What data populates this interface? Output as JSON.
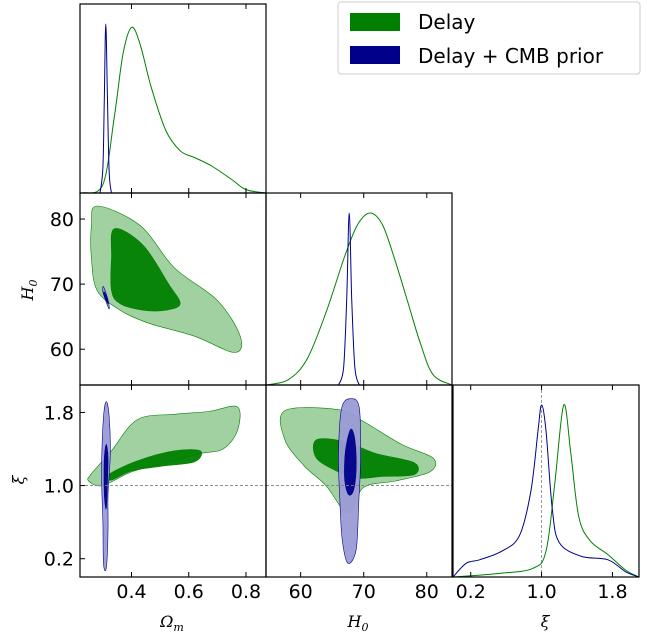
{
  "chart_data": {
    "type": "corner",
    "colors": {
      "delay": "#008000",
      "delay_cmb": "#00008b",
      "delay_fill_light": "#9cce9c",
      "cmb_fill_light": "#9b9bd6",
      "reference_line": "#7f7f7f"
    },
    "legend": {
      "position": "top-right",
      "entries": [
        {
          "label": "Delay",
          "color": "#008000"
        },
        {
          "label": "Delay + CMB prior",
          "color": "#00008b"
        }
      ]
    },
    "parameters": [
      {
        "symbol": "Ω",
        "subscript": "m",
        "range": [
          0.22,
          0.87
        ],
        "ticks": [
          {
            "value": 0.4,
            "label": "0.4"
          },
          {
            "value": 0.6,
            "label": "0.6"
          },
          {
            "value": 0.8,
            "label": "0.8"
          }
        ]
      },
      {
        "symbol": "H",
        "subscript": "0",
        "range": [
          54.5,
          84
        ],
        "ticks": [
          {
            "value": 60,
            "label": "60"
          },
          {
            "value": 70,
            "label": "70"
          },
          {
            "value": 80,
            "label": "80"
          }
        ]
      },
      {
        "symbol": "ξ",
        "subscript": "",
        "range": [
          0.0,
          2.1
        ],
        "ticks": [
          {
            "value": 0.2,
            "label": "0.2"
          },
          {
            "value": 1.0,
            "label": "1.0"
          },
          {
            "value": 1.8,
            "label": "1.8"
          }
        ]
      }
    ],
    "reference": {
      "parameter": "ξ",
      "value": 1.0
    },
    "marginals": {
      "Om": {
        "delay": [
          [
            0.23,
            0.0
          ],
          [
            0.3,
            0.05
          ],
          [
            0.34,
            0.45
          ],
          [
            0.37,
            0.82
          ],
          [
            0.4,
            0.98
          ],
          [
            0.43,
            0.88
          ],
          [
            0.47,
            0.62
          ],
          [
            0.52,
            0.37
          ],
          [
            0.57,
            0.25
          ],
          [
            0.62,
            0.21
          ],
          [
            0.68,
            0.16
          ],
          [
            0.75,
            0.08
          ],
          [
            0.8,
            0.02
          ],
          [
            0.87,
            0.0
          ]
        ],
        "delay_cmb": [
          [
            0.29,
            0.0
          ],
          [
            0.3,
            0.15
          ],
          [
            0.305,
            0.55
          ],
          [
            0.31,
            1.0
          ],
          [
            0.316,
            0.55
          ],
          [
            0.322,
            0.12
          ],
          [
            0.33,
            0.0
          ]
        ]
      },
      "H0": {
        "delay": [
          [
            54.5,
            0.0
          ],
          [
            58,
            0.03
          ],
          [
            61,
            0.15
          ],
          [
            64,
            0.42
          ],
          [
            67,
            0.75
          ],
          [
            69,
            0.93
          ],
          [
            71,
            1.0
          ],
          [
            73,
            0.93
          ],
          [
            75,
            0.72
          ],
          [
            77,
            0.48
          ],
          [
            79,
            0.24
          ],
          [
            81,
            0.06
          ],
          [
            84,
            0.0
          ]
        ],
        "delay_cmb": [
          [
            66.0,
            0.0
          ],
          [
            66.8,
            0.1
          ],
          [
            67.3,
            0.5
          ],
          [
            67.7,
            1.0
          ],
          [
            68.1,
            0.5
          ],
          [
            68.6,
            0.1
          ],
          [
            69.3,
            0.0
          ]
        ]
      },
      "xi": {
        "delay": [
          [
            0.0,
            0.0
          ],
          [
            0.5,
            0.02
          ],
          [
            0.9,
            0.05
          ],
          [
            1.05,
            0.15
          ],
          [
            1.15,
            0.55
          ],
          [
            1.25,
            1.0
          ],
          [
            1.33,
            0.72
          ],
          [
            1.42,
            0.35
          ],
          [
            1.55,
            0.21
          ],
          [
            1.75,
            0.13
          ],
          [
            1.95,
            0.04
          ],
          [
            2.1,
            0.0
          ]
        ],
        "delay_cmb": [
          [
            0.0,
            0.0
          ],
          [
            0.15,
            0.08
          ],
          [
            0.3,
            0.1
          ],
          [
            0.55,
            0.15
          ],
          [
            0.75,
            0.24
          ],
          [
            0.88,
            0.5
          ],
          [
            0.96,
            0.85
          ],
          [
            1.0,
            1.0
          ],
          [
            1.05,
            0.85
          ],
          [
            1.12,
            0.4
          ],
          [
            1.2,
            0.2
          ],
          [
            1.45,
            0.12
          ],
          [
            1.75,
            0.1
          ],
          [
            1.95,
            0.03
          ],
          [
            2.1,
            0.0
          ]
        ]
      }
    },
    "contours": {
      "Om_H0": {
        "delay_95": [
          [
            0.28,
            82
          ],
          [
            0.43,
            79
          ],
          [
            0.55,
            72.5
          ],
          [
            0.7,
            67.5
          ],
          [
            0.78,
            62
          ],
          [
            0.76,
            59.5
          ],
          [
            0.62,
            62
          ],
          [
            0.46,
            64
          ],
          [
            0.36,
            66
          ],
          [
            0.28,
            69
          ],
          [
            0.26,
            74
          ],
          [
            0.26,
            79
          ]
        ],
        "delay_68": [
          [
            0.34,
            78.5
          ],
          [
            0.44,
            76
          ],
          [
            0.53,
            70
          ],
          [
            0.57,
            67
          ],
          [
            0.52,
            66
          ],
          [
            0.44,
            66
          ],
          [
            0.36,
            67
          ],
          [
            0.33,
            69
          ],
          [
            0.33,
            74
          ]
        ],
        "cmb_95": [
          [
            0.302,
            69.6
          ],
          [
            0.318,
            67.6
          ],
          [
            0.322,
            66.2
          ],
          [
            0.312,
            67.2
          ],
          [
            0.3,
            68.8
          ]
        ],
        "cmb_68": [
          [
            0.305,
            68.8
          ],
          [
            0.315,
            67.8
          ],
          [
            0.318,
            67.0
          ],
          [
            0.31,
            67.6
          ],
          [
            0.303,
            68.4
          ]
        ]
      },
      "Om_xi": {
        "delay_95": [
          [
            0.26,
            1.13
          ],
          [
            0.33,
            1.38
          ],
          [
            0.42,
            1.72
          ],
          [
            0.55,
            1.78
          ],
          [
            0.67,
            1.81
          ],
          [
            0.77,
            1.86
          ],
          [
            0.77,
            1.6
          ],
          [
            0.72,
            1.4
          ],
          [
            0.64,
            1.35
          ],
          [
            0.52,
            1.25
          ],
          [
            0.4,
            1.15
          ],
          [
            0.3,
            1.0
          ],
          [
            0.25,
            1.05
          ]
        ],
        "delay_68": [
          [
            0.32,
            1.12
          ],
          [
            0.42,
            1.27
          ],
          [
            0.55,
            1.38
          ],
          [
            0.64,
            1.38
          ],
          [
            0.62,
            1.26
          ],
          [
            0.5,
            1.21
          ],
          [
            0.4,
            1.16
          ],
          [
            0.33,
            1.06
          ]
        ],
        "cmb_95": [
          [
            0.302,
            1.75
          ],
          [
            0.312,
            1.92
          ],
          [
            0.322,
            1.75
          ],
          [
            0.326,
            1.35
          ],
          [
            0.318,
            0.9
          ],
          [
            0.318,
            0.5
          ],
          [
            0.312,
            0.1
          ],
          [
            0.302,
            0.15
          ],
          [
            0.3,
            0.6
          ],
          [
            0.296,
            1.0
          ],
          [
            0.296,
            1.3
          ]
        ],
        "cmb_68": [
          [
            0.305,
            1.3
          ],
          [
            0.312,
            1.45
          ],
          [
            0.318,
            1.3
          ],
          [
            0.316,
            1.05
          ],
          [
            0.312,
            0.75
          ],
          [
            0.306,
            0.85
          ],
          [
            0.304,
            1.05
          ]
        ]
      },
      "H0_xi": {
        "delay_95": [
          [
            57.5,
            1.82
          ],
          [
            66,
            1.83
          ],
          [
            70,
            1.7
          ],
          [
            76,
            1.45
          ],
          [
            81,
            1.3
          ],
          [
            80.5,
            1.15
          ],
          [
            75,
            1.05
          ],
          [
            70,
            0.98
          ],
          [
            67.5,
            0.7
          ],
          [
            64,
            1.0
          ],
          [
            60.5,
            1.22
          ],
          [
            57.5,
            1.5
          ]
        ],
        "delay_68": [
          [
            62.5,
            1.5
          ],
          [
            67,
            1.48
          ],
          [
            72,
            1.35
          ],
          [
            78,
            1.25
          ],
          [
            78,
            1.12
          ],
          [
            73,
            1.1
          ],
          [
            69,
            1.08
          ],
          [
            66,
            1.15
          ],
          [
            62.5,
            1.3
          ]
        ],
        "cmb_95": [
          [
            66.5,
            1.85
          ],
          [
            68,
            1.95
          ],
          [
            69.3,
            1.85
          ],
          [
            69.5,
            1.3
          ],
          [
            69.2,
            0.8
          ],
          [
            68.8,
            0.3
          ],
          [
            67.5,
            0.15
          ],
          [
            66.6,
            0.4
          ],
          [
            66.2,
            0.85
          ],
          [
            66.0,
            1.35
          ]
        ],
        "cmb_68": [
          [
            67.4,
            1.5
          ],
          [
            68.0,
            1.62
          ],
          [
            68.6,
            1.5
          ],
          [
            68.8,
            1.2
          ],
          [
            68.4,
            0.95
          ],
          [
            67.6,
            0.9
          ],
          [
            67.0,
            1.05
          ],
          [
            67.0,
            1.3
          ]
        ]
      }
    }
  }
}
